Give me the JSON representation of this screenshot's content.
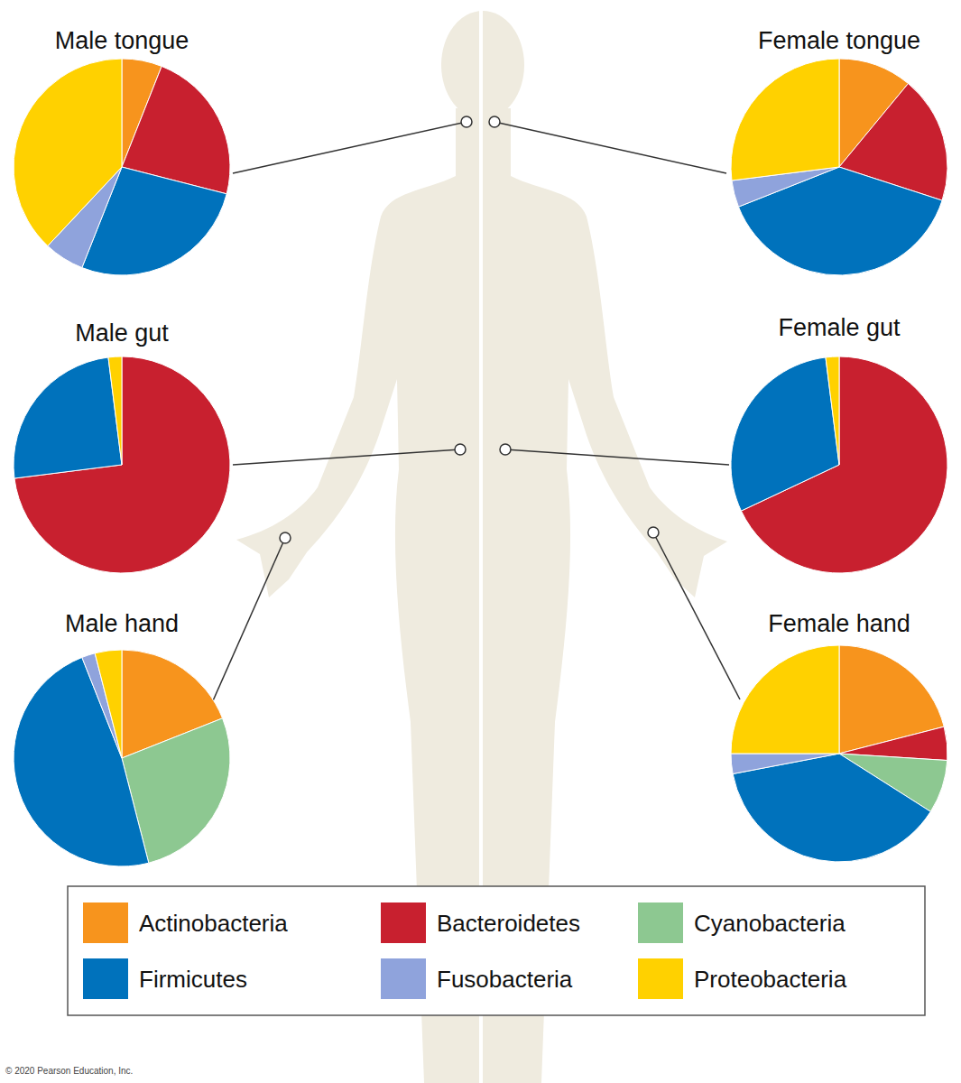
{
  "chart_data": [
    {
      "type": "pie",
      "title": "Male tongue",
      "categories": [
        "Actinobacteria",
        "Bacteroidetes",
        "Cyanobacteria",
        "Firmicutes",
        "Fusobacteria",
        "Proteobacteria"
      ],
      "values": [
        6,
        23,
        0,
        27,
        6,
        38
      ],
      "colors": [
        "#f7941d",
        "#c8202f",
        "#8dc891",
        "#0072bc",
        "#8fa3dc",
        "#ffd100"
      ]
    },
    {
      "type": "pie",
      "title": "Female tongue",
      "categories": [
        "Actinobacteria",
        "Bacteroidetes",
        "Cyanobacteria",
        "Firmicutes",
        "Fusobacteria",
        "Proteobacteria"
      ],
      "values": [
        11,
        19,
        0,
        39,
        4,
        27
      ],
      "colors": [
        "#f7941d",
        "#c8202f",
        "#8dc891",
        "#0072bc",
        "#8fa3dc",
        "#ffd100"
      ]
    },
    {
      "type": "pie",
      "title": "Male gut",
      "categories": [
        "Actinobacteria",
        "Bacteroidetes",
        "Cyanobacteria",
        "Firmicutes",
        "Fusobacteria",
        "Proteobacteria"
      ],
      "values": [
        0,
        73,
        0,
        25,
        0,
        2
      ],
      "colors": [
        "#f7941d",
        "#c8202f",
        "#8dc891",
        "#0072bc",
        "#8fa3dc",
        "#ffd100"
      ]
    },
    {
      "type": "pie",
      "title": "Female gut",
      "categories": [
        "Actinobacteria",
        "Bacteroidetes",
        "Cyanobacteria",
        "Firmicutes",
        "Fusobacteria",
        "Proteobacteria"
      ],
      "values": [
        0,
        68,
        0,
        30,
        0,
        2
      ],
      "colors": [
        "#f7941d",
        "#c8202f",
        "#8dc891",
        "#0072bc",
        "#8fa3dc",
        "#ffd100"
      ]
    },
    {
      "type": "pie",
      "title": "Male hand",
      "categories": [
        "Actinobacteria",
        "Bacteroidetes",
        "Cyanobacteria",
        "Firmicutes",
        "Fusobacteria",
        "Proteobacteria"
      ],
      "values": [
        19,
        0,
        27,
        48,
        2,
        4
      ],
      "colors": [
        "#f7941d",
        "#c8202f",
        "#8dc891",
        "#0072bc",
        "#8fa3dc",
        "#ffd100"
      ]
    },
    {
      "type": "pie",
      "title": "Female hand",
      "categories": [
        "Actinobacteria",
        "Bacteroidetes",
        "Cyanobacteria",
        "Firmicutes",
        "Fusobacteria",
        "Proteobacteria"
      ],
      "values": [
        21,
        5,
        8,
        38,
        3,
        25
      ],
      "colors": [
        "#f7941d",
        "#c8202f",
        "#8dc891",
        "#0072bc",
        "#8fa3dc",
        "#ffd100"
      ]
    }
  ],
  "credit": "© 2020 Pearson Education, Inc."
}
